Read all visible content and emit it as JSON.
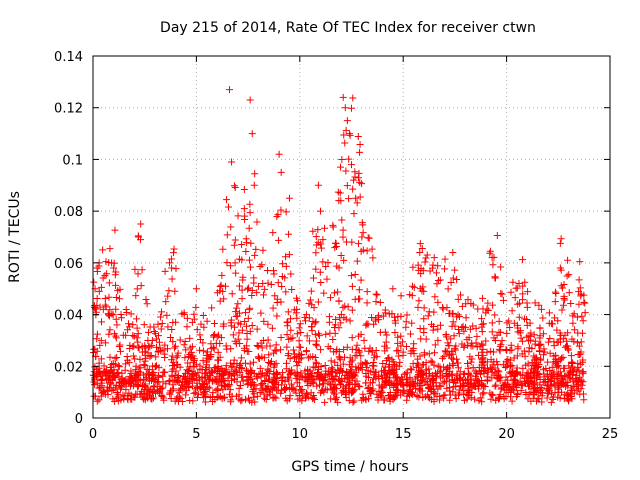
{
  "chart_data": {
    "type": "scatter",
    "title": "Day 215 of 2014, Rate Of TEC Index for receiver ctwn",
    "xlabel": "GPS time / hours",
    "ylabel": "ROTI / TECUs",
    "xlim": [
      0,
      25
    ],
    "ylim": [
      0,
      0.14
    ],
    "xticks": [
      0,
      5,
      10,
      15,
      20,
      25
    ],
    "yticks": [
      0,
      0.02,
      0.04,
      0.06,
      0.08,
      0.1,
      0.12,
      0.14
    ],
    "xtick_labels": [
      "0",
      "5",
      "10",
      "15",
      "20",
      "25"
    ],
    "ytick_labels": [
      "0",
      "0.02",
      "0.04",
      "0.06",
      "0.08",
      "0.1",
      "0.12",
      "0.14"
    ],
    "grid": true,
    "marker": "+",
    "colors": {
      "series": "#ff0000",
      "grid": "#b0b0b0",
      "axes": "#000000"
    },
    "series": [
      {
        "x": [
          0.1,
          0.2,
          0.3,
          0.5,
          0.9,
          1.0,
          2.2,
          2.3,
          3.7,
          3.8,
          5.0,
          6.6,
          6.7,
          7.6,
          7.7,
          7.8,
          9.0,
          9.1,
          9.5,
          10.9,
          11.0,
          12.1,
          12.2,
          12.3,
          12.4,
          12.5,
          12.6,
          12.7,
          13.0,
          14.5,
          15.8,
          16.5,
          17.4,
          19.3,
          20.6,
          22.6,
          23.5
        ],
        "y": [
          0.05,
          0.058,
          0.06,
          0.042,
          0.06,
          0.058,
          0.07,
          0.069,
          0.06,
          0.058,
          0.05,
          0.127,
          0.099,
          0.123,
          0.11,
          0.09,
          0.102,
          0.095,
          0.085,
          0.09,
          0.08,
          0.124,
          0.12,
          0.115,
          0.11,
          0.098,
          0.092,
          0.085,
          0.07,
          0.05,
          0.064,
          0.062,
          0.064,
          0.062,
          0.052,
          0.058,
          0.044
        ]
      }
    ]
  }
}
